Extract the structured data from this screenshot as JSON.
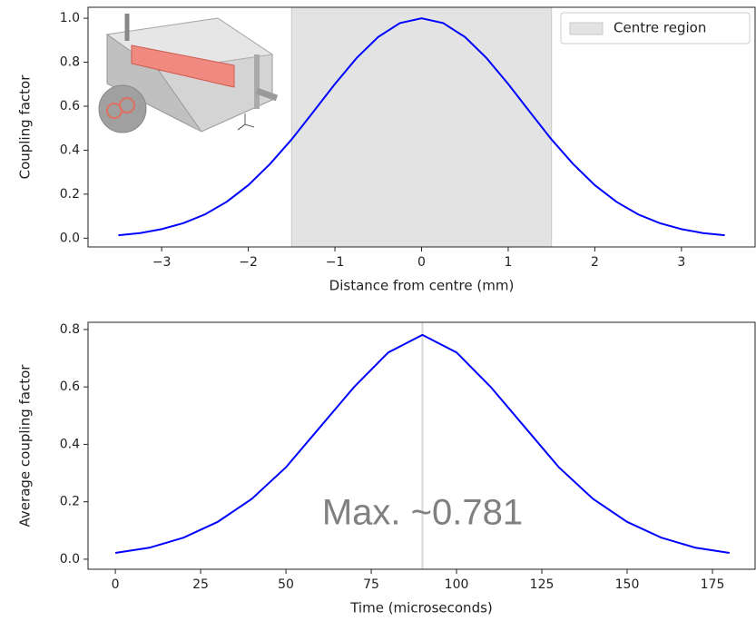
{
  "chart_data": [
    {
      "type": "line",
      "xlabel": "Distance from centre (mm)",
      "ylabel": "Coupling factor",
      "x": [
        -3.5,
        -3.25,
        -3,
        -2.75,
        -2.5,
        -2.25,
        -2,
        -1.75,
        -1.5,
        -1.25,
        -1,
        -0.75,
        -0.5,
        -0.25,
        0,
        0.25,
        0.5,
        0.75,
        1,
        1.25,
        1.5,
        1.75,
        2,
        2.25,
        2.5,
        2.75,
        3,
        3.25,
        3.5
      ],
      "series": [
        {
          "color": "#0000ff",
          "values": [
            0.013,
            0.023,
            0.041,
            0.068,
            0.108,
            0.165,
            0.241,
            0.337,
            0.449,
            0.574,
            0.701,
            0.819,
            0.915,
            0.978,
            1,
            0.978,
            0.915,
            0.819,
            0.701,
            0.574,
            0.449,
            0.337,
            0.241,
            0.165,
            0.108,
            0.068,
            0.041,
            0.023,
            0.013
          ]
        }
      ],
      "span": {
        "name": "Centre region",
        "range": [
          -1.5,
          1.5
        ],
        "color": "#e3e3e3"
      },
      "legend": "upper right",
      "xlim": [
        -3.85,
        3.85
      ],
      "xticks": [
        {
          "value": -3,
          "label": "−3"
        },
        {
          "value": -2,
          "label": "−2"
        },
        {
          "value": -1,
          "label": "−1"
        },
        0,
        1,
        2,
        3
      ],
      "ylim": [
        -0.04,
        1.05
      ],
      "yticks": [
        {
          "value": 0,
          "label": "0.0"
        },
        0.2,
        0.4,
        0.6,
        0.8,
        {
          "value": 1,
          "label": "1.0"
        }
      ]
    },
    {
      "type": "line",
      "xlabel": "Time (microseconds)",
      "ylabel": "Average coupling factor",
      "x": [
        0,
        10,
        20,
        30,
        40,
        50,
        60,
        70,
        80,
        90,
        100,
        110,
        120,
        130,
        140,
        150,
        160,
        170,
        180
      ],
      "series": [
        {
          "color": "#0000ff",
          "values": [
            0.022,
            0.04,
            0.075,
            0.13,
            0.21,
            0.32,
            0.46,
            0.6,
            0.72,
            0.781,
            0.72,
            0.6,
            0.46,
            0.32,
            0.21,
            0.13,
            0.075,
            0.04,
            0.022
          ]
        }
      ],
      "vline": {
        "value": 90,
        "color": "#d9d9d9"
      },
      "annotation": {
        "text": "Max. ~0.781",
        "color": "#808080"
      },
      "xlim": [
        -8,
        187.5
      ],
      "xticks": [
        0,
        25,
        50,
        75,
        100,
        125,
        150,
        175
      ],
      "ylim": [
        -0.035,
        0.825
      ],
      "yticks": [
        {
          "value": 0,
          "label": "0.0"
        },
        0.2,
        0.4,
        0.6,
        0.8
      ]
    }
  ]
}
